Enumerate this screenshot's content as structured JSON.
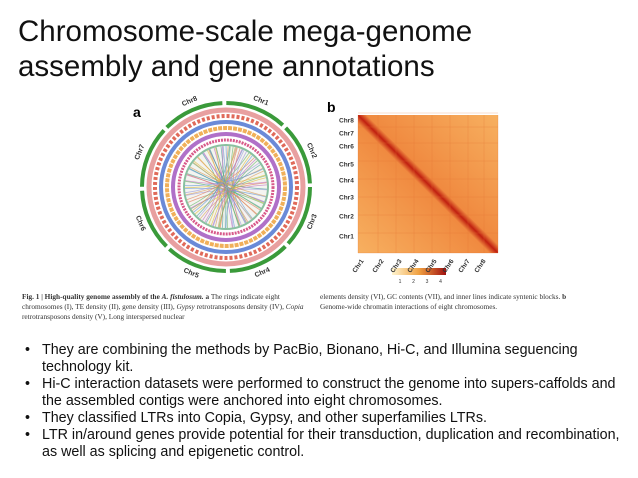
{
  "header": {
    "title_lines": [
      "Chromosome-scale mega-genome",
      "assembly and gene annotations"
    ]
  },
  "figure": {
    "panel_a": {
      "label": "a",
      "chromosomes": [
        "Chr1",
        "Chr2",
        "Chr3",
        "Chr4",
        "Chr5",
        "Chr6",
        "Chr7",
        "Chr8"
      ]
    },
    "panel_b": {
      "label": "b",
      "y_labels": [
        "Chr8",
        "Chr7",
        "Chr6",
        "Chr5",
        "Chr4",
        "Chr3",
        "Chr2",
        "Chr1"
      ],
      "x_labels": [
        "Chr1",
        "Chr2",
        "Chr3",
        "Chr4",
        "Chr5",
        "Chr6",
        "Chr7",
        "Chr8"
      ],
      "colorbar_ticks": [
        "1",
        "2",
        "3",
        "4"
      ]
    },
    "caption": {
      "left_bold": "Fig. 1 | High-quality genome assembly of the",
      "left_italic": "A. fistulosum.",
      "left_a": "a",
      "left_text": "The rings indicate eight chromosomes (I), TE density (II), gene density (III),",
      "left_gypsy": "Gypsy",
      "left_text2": "retrotransposons density (IV),",
      "left_copia": "Copia",
      "left_text3": "retrotransposons density (V), Long interspersed nuclear",
      "right_text": "elements density (VI), GC contents (VII), and inner lines indicate syntenic blocks.",
      "right_b": "b",
      "right_text2": "Genome-wide chromatin interactions of eight chromosomes."
    }
  },
  "bullets": [
    "They are combining the methods by PacBio, Bionano, Hi-C, and Illumina seguencing technology kit.",
    "Hi-C interaction datasets were performed to construct the genome into supers-caffolds and the assembled contigs were anchored into eight chromosomes.",
    "They classified LTRs into Copia, Gypsy, and other superfamilies LTRs.",
    "LTR in/around genes provide potential for their transduction, duplication and recombination, as well as splicing and epigenetic control."
  ]
}
